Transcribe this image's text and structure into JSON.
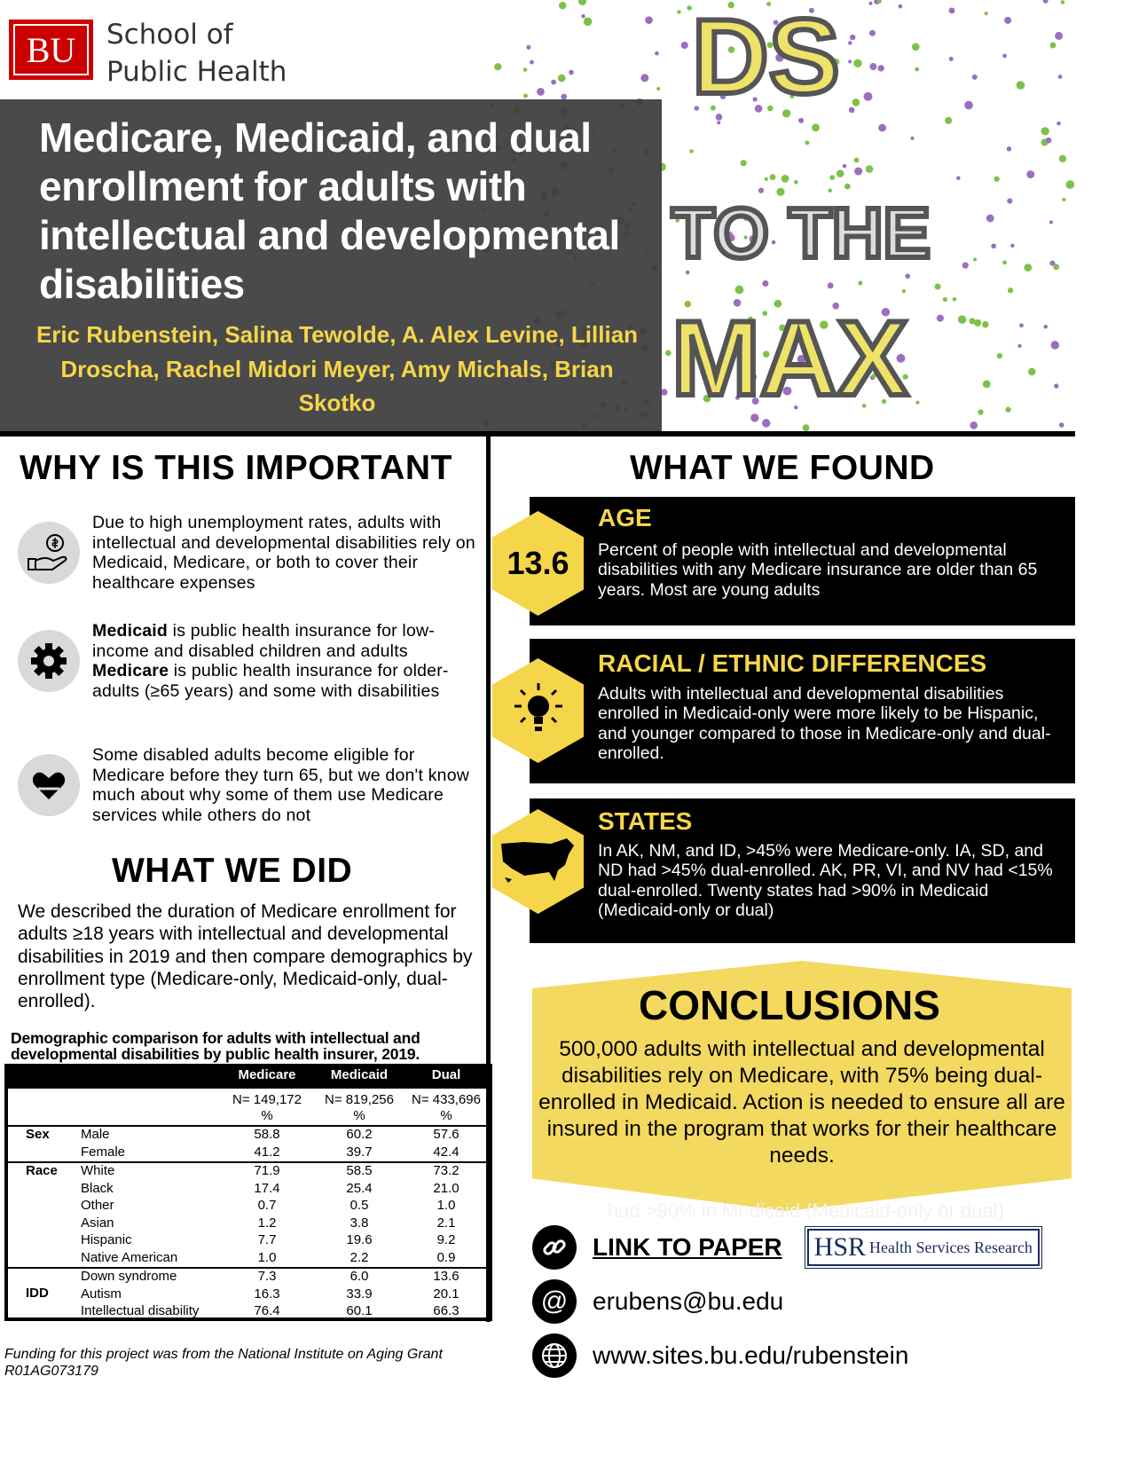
{
  "header": {
    "logo_mark": "BU",
    "logo_text_line1": "School of",
    "logo_text_line2": "Public Health",
    "artwork_text": "DS TO THE MAX",
    "title": "Medicare, Medicaid, and dual enrollment for adults with intellectual and developmental disabilities",
    "authors": "Eric Rubenstein, Salina Tewolde, A. Alex Levine, Lillian Droscha, Rachel Midori Meyer, Amy Michals, Brian Skotko"
  },
  "why": {
    "heading": "WHY IS THIS IMPORTANT",
    "items": [
      {
        "icon": "hand-money-icon",
        "text": "Due to high unemployment rates, adults with intellectual and developmental disabilities rely on Medicaid, Medicare, or both to cover their healthcare expenses"
      },
      {
        "icon": "gear-icon",
        "bold1": "Medicaid",
        "text1": " is public health insurance for low-income and disabled children and adults",
        "bold2": "Medicare",
        "text2": " is public health insurance for older-adults (≥65 years) and some with disabilities"
      },
      {
        "icon": "heart-hands-icon",
        "text": "Some disabled adults become eligible for Medicare before they turn 65, but we don't know much about why some of them use Medicare services while others do not"
      }
    ]
  },
  "did": {
    "heading": "WHAT WE DID",
    "text": "We described the duration of Medicare enrollment for adults ≥18 years with intellectual and developmental disabilities in 2019 and then compare demographics by enrollment type (Medicare-only, Medicaid-only, dual-enrolled)."
  },
  "table": {
    "caption": "Demographic comparison for adults with intellectual and developmental disabilities by public health insurer, 2019.",
    "columns": [
      "Medicare",
      "Medicaid",
      "Dual"
    ],
    "n": [
      "N= 149,172",
      "N= 819,256",
      "N= 433,696"
    ],
    "unit": "%",
    "groups": [
      {
        "label": "Sex",
        "rows": [
          [
            "Male",
            "58.8",
            "60.2",
            "57.6"
          ],
          [
            "Female",
            "41.2",
            "39.7",
            "42.4"
          ]
        ]
      },
      {
        "label": "Race",
        "rows": [
          [
            "White",
            "71.9",
            "58.5",
            "73.2"
          ],
          [
            "Black",
            "17.4",
            "25.4",
            "21.0"
          ],
          [
            "Other",
            "0.7",
            "0.5",
            "1.0"
          ],
          [
            "Asian",
            "1.2",
            "3.8",
            "2.1"
          ],
          [
            "Hispanic",
            "7.7",
            "19.6",
            "9.2"
          ],
          [
            "Native American",
            "1.0",
            "2.2",
            "0.9"
          ]
        ]
      },
      {
        "label": "IDD",
        "rows": [
          [
            "Down syndrome",
            "7.3",
            "6.0",
            "13.6"
          ],
          [
            "Autism",
            "16.3",
            "33.9",
            "20.1"
          ],
          [
            "Intellectual disability",
            "76.4",
            "60.1",
            "66.3"
          ]
        ]
      }
    ]
  },
  "funding": "Funding for this project was from the National Institute on Aging Grant R01AG073179",
  "found": {
    "heading": "WHAT WE FOUND",
    "items": [
      {
        "badge": "13.6",
        "title": "AGE",
        "text": "Percent of people with intellectual and developmental disabilities with any Medicare insurance are older than 65 years. Most are young adults"
      },
      {
        "icon": "lightbulb-icon",
        "title": "RACIAL / ETHNIC DIFFERENCES",
        "text": "Adults with intellectual and developmental disabilities enrolled in Medicaid-only were more likely to be Hispanic, and younger compared to those in Medicare-only and dual-enrolled."
      },
      {
        "icon": "usa-map-icon",
        "title": "STATES",
        "text": "In AK, NM, and ID, >45% were Medicare-only. IA, SD, and ND had >45% dual-enrolled. AK, PR, VI, and NV had <15% dual-enrolled. Twenty states had >90% in Medicaid (Medicaid-only or dual)"
      }
    ]
  },
  "conclusions": {
    "heading": "CONCLUSIONS",
    "text": "500,000 adults with intellectual and developmental disabilities rely on Medicare, with 75% being dual-enrolled in Medicaid. Action is needed to ensure all are insured in the program that works for their healthcare needs.",
    "ghost_text": "had >90% in Medicaid (Medicaid-only or dual)"
  },
  "contact": {
    "link_label": "LINK TO PAPER",
    "journal_logo_mark": "HSR",
    "journal_logo_text": "Health Services Research",
    "email": "erubens@bu.edu",
    "website": "www.sites.bu.edu/rubenstein"
  },
  "colors": {
    "accent_yellow": "#f5d64a",
    "bu_red": "#cc0000",
    "title_gray": "#3c3c3c"
  }
}
